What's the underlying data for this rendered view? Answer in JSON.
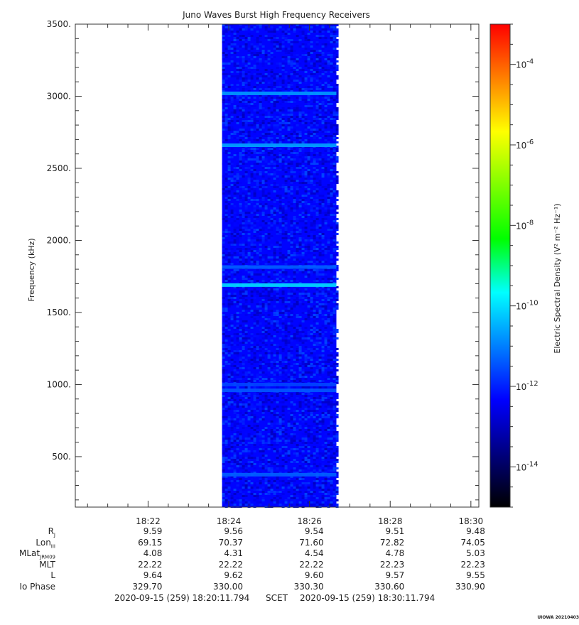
{
  "chart_data": {
    "type": "heatmap",
    "title": "Juno Waves Burst High Frequency Receivers",
    "ylabel": "Frequency (kHz)",
    "ylim": [
      150,
      3500
    ],
    "y_ticks": [
      "500.",
      "1000.",
      "1500.",
      "2000.",
      "2500.",
      "3000.",
      "3500."
    ],
    "x_ticks": [
      "18:22",
      "18:24",
      "18:26",
      "18:28",
      "18:30"
    ],
    "xlim": [
      "18:20:11.794",
      "18:30:11.794"
    ],
    "data_time_range": [
      "18:23:50",
      "18:26:40"
    ],
    "background_level_exponent": -12.3,
    "emission_lines": [
      {
        "freq_khz": 3020,
        "level_exponent": -10.7
      },
      {
        "freq_khz": 2660,
        "level_exponent": -10.6
      },
      {
        "freq_khz": 1815,
        "level_exponent": -11.3
      },
      {
        "freq_khz": 1690,
        "level_exponent": -10.0
      },
      {
        "freq_khz": 1000,
        "level_exponent": -11.6
      },
      {
        "freq_khz": 960,
        "level_exponent": -11.4
      },
      {
        "freq_khz": 375,
        "level_exponent": -11.3
      }
    ],
    "colorbar": {
      "label": "Electric Spectral Density (V² m⁻² Hz⁻¹)",
      "scale": "log",
      "range_exponent": [
        -15,
        -3
      ],
      "tick_exponents": [
        -14,
        -12,
        -10,
        -8,
        -6,
        -4
      ],
      "tick_labels": [
        "10-14",
        "10-12",
        "10-10",
        "10-8",
        "10-6",
        "10-4"
      ],
      "colors": [
        "#000000",
        "#00007f",
        "#0000ff",
        "#007fff",
        "#00ffff",
        "#00ff00",
        "#7fff00",
        "#ffff00",
        "#ff7f00",
        "#ff0000"
      ]
    }
  },
  "ephemeris": {
    "rows": [
      {
        "label": "R",
        "sub": "J",
        "values": [
          "9.59",
          "9.56",
          "9.54",
          "9.51",
          "9.48"
        ]
      },
      {
        "label": "Lon",
        "sub": "III",
        "values": [
          "69.15",
          "70.37",
          "71.60",
          "72.82",
          "74.05"
        ]
      },
      {
        "label": "MLat",
        "sub": "JRM09",
        "values": [
          "4.08",
          "4.31",
          "4.54",
          "4.78",
          "5.03"
        ]
      },
      {
        "label": "MLT",
        "sub": "",
        "values": [
          "22.22",
          "22.22",
          "22.22",
          "22.23",
          "22.23"
        ]
      },
      {
        "label": "L",
        "sub": "",
        "values": [
          "9.64",
          "9.62",
          "9.60",
          "9.57",
          "9.55"
        ]
      },
      {
        "label": "Io Phase",
        "sub": "",
        "values": [
          "329.70",
          "330.00",
          "330.30",
          "330.60",
          "330.90"
        ]
      }
    ]
  },
  "footer": {
    "start": "2020-09-15 (259) 18:20:11.794",
    "scet": "SCET",
    "end": "2020-09-15 (259) 18:30:11.794"
  },
  "credit": "UIOWA 20210403"
}
